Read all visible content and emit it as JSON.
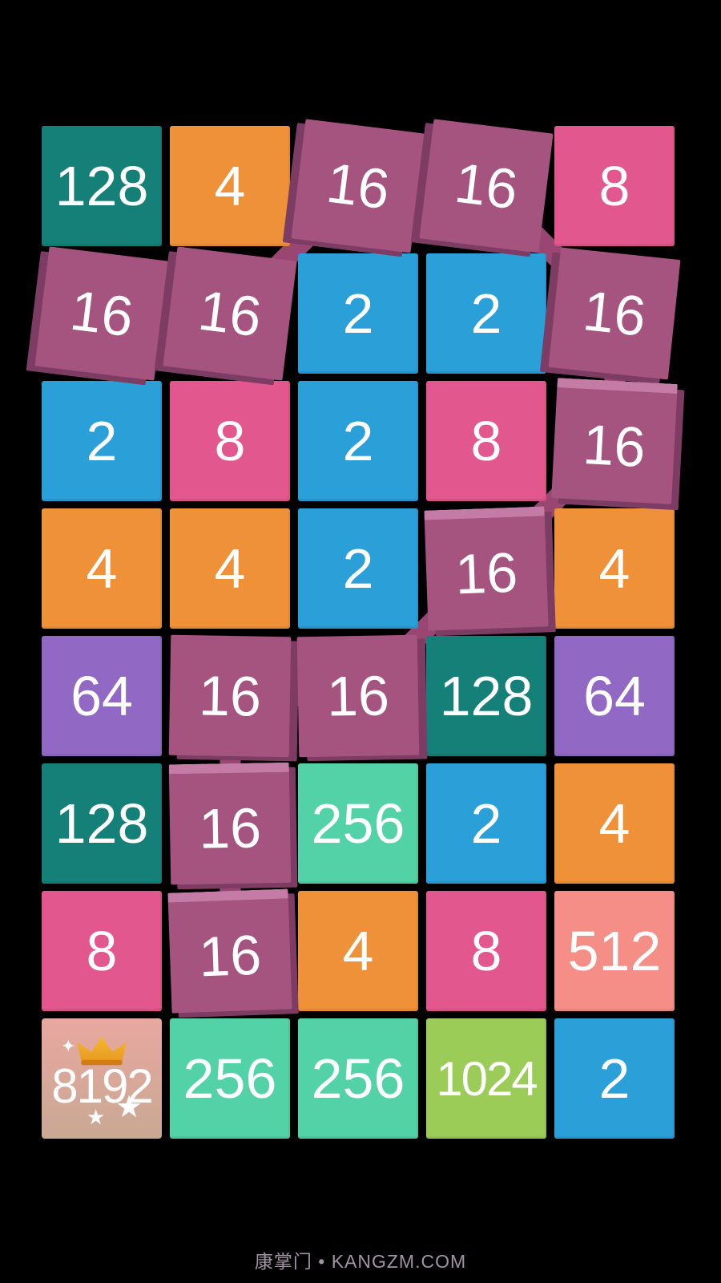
{
  "app": {
    "watermark": "康掌门 • KANGZM.COM"
  },
  "palette": {
    "2": "#2a9fd8",
    "4": "#ef9138",
    "8": "#e2578d",
    "16": "#a5537f",
    "64": "#9169c4",
    "128": "#148077",
    "256": "#52d2a6",
    "512": "#f48e86",
    "1024": "#9acc57",
    "chain_dark": "#7d3c63",
    "chain_bevel": "#c47ba5",
    "chain_link": "#9a4673",
    "special_top": "#e8a89f",
    "special_bottom": "#c9a894",
    "crown_gold": "#e89b20",
    "crown_gold_light": "#f7b733",
    "text": "#ffffff"
  },
  "board": {
    "rows": 8,
    "cols": 5,
    "tiles": [
      {
        "r": 1,
        "c": 1,
        "value": "128",
        "kind": "normal"
      },
      {
        "r": 1,
        "c": 2,
        "value": "4",
        "kind": "normal"
      },
      {
        "r": 1,
        "c": 3,
        "value": "16",
        "kind": "chain",
        "tilt": 7,
        "shadow": [
          -10,
          6
        ],
        "bevel": false
      },
      {
        "r": 1,
        "c": 4,
        "value": "16",
        "kind": "chain",
        "tilt": 7,
        "shadow": [
          -10,
          6
        ],
        "bevel": false
      },
      {
        "r": 1,
        "c": 5,
        "value": "8",
        "kind": "normal"
      },
      {
        "r": 2,
        "c": 1,
        "value": "16",
        "kind": "chain",
        "tilt": 7,
        "shadow": [
          -10,
          7
        ],
        "bevel": false
      },
      {
        "r": 2,
        "c": 2,
        "value": "16",
        "kind": "chain",
        "tilt": 7,
        "shadow": [
          -10,
          7
        ],
        "bevel": false
      },
      {
        "r": 2,
        "c": 3,
        "value": "2",
        "kind": "normal"
      },
      {
        "r": 2,
        "c": 4,
        "value": "2",
        "kind": "normal"
      },
      {
        "r": 2,
        "c": 5,
        "value": "16",
        "kind": "chain",
        "tilt": 6,
        "shadow": [
          -10,
          7
        ],
        "bevel": false
      },
      {
        "r": 3,
        "c": 1,
        "value": "2",
        "kind": "normal"
      },
      {
        "r": 3,
        "c": 2,
        "value": "8",
        "kind": "normal"
      },
      {
        "r": 3,
        "c": 3,
        "value": "2",
        "kind": "normal"
      },
      {
        "r": 3,
        "c": 4,
        "value": "8",
        "kind": "normal"
      },
      {
        "r": 3,
        "c": 5,
        "value": "16",
        "kind": "chain",
        "tilt": 3,
        "shadow": [
          9,
          7
        ],
        "bevel": true
      },
      {
        "r": 4,
        "c": 1,
        "value": "4",
        "kind": "normal"
      },
      {
        "r": 4,
        "c": 2,
        "value": "4",
        "kind": "normal"
      },
      {
        "r": 4,
        "c": 3,
        "value": "2",
        "kind": "normal"
      },
      {
        "r": 4,
        "c": 4,
        "value": "16",
        "kind": "chain",
        "tilt": -2,
        "shadow": [
          9,
          7
        ],
        "bevel": true
      },
      {
        "r": 4,
        "c": 5,
        "value": "4",
        "kind": "normal"
      },
      {
        "r": 5,
        "c": 1,
        "value": "64",
        "kind": "normal"
      },
      {
        "r": 5,
        "c": 2,
        "value": "16",
        "kind": "chain",
        "tilt": 1,
        "shadow": [
          10,
          5
        ],
        "bevel": false
      },
      {
        "r": 5,
        "c": 3,
        "value": "16",
        "kind": "chain",
        "tilt": -1,
        "shadow": [
          10,
          5
        ],
        "bevel": false
      },
      {
        "r": 5,
        "c": 4,
        "value": "128",
        "kind": "normal"
      },
      {
        "r": 5,
        "c": 5,
        "value": "64",
        "kind": "normal"
      },
      {
        "r": 6,
        "c": 1,
        "value": "128",
        "kind": "normal"
      },
      {
        "r": 6,
        "c": 2,
        "value": "16",
        "kind": "chain",
        "tilt": -1,
        "shadow": [
          8,
          6
        ],
        "bevel": true
      },
      {
        "r": 6,
        "c": 3,
        "value": "256",
        "kind": "normal"
      },
      {
        "r": 6,
        "c": 4,
        "value": "2",
        "kind": "normal"
      },
      {
        "r": 6,
        "c": 5,
        "value": "4",
        "kind": "normal"
      },
      {
        "r": 7,
        "c": 1,
        "value": "8",
        "kind": "normal"
      },
      {
        "r": 7,
        "c": 2,
        "value": "16",
        "kind": "chain",
        "tilt": -2,
        "shadow": [
          8,
          6
        ],
        "bevel": true
      },
      {
        "r": 7,
        "c": 3,
        "value": "4",
        "kind": "normal"
      },
      {
        "r": 7,
        "c": 4,
        "value": "8",
        "kind": "normal"
      },
      {
        "r": 7,
        "c": 5,
        "value": "512",
        "kind": "normal"
      },
      {
        "r": 8,
        "c": 1,
        "value": "8192",
        "kind": "special"
      },
      {
        "r": 8,
        "c": 2,
        "value": "256",
        "kind": "normal"
      },
      {
        "r": 8,
        "c": 3,
        "value": "256",
        "kind": "normal"
      },
      {
        "r": 8,
        "c": 4,
        "value": "1024",
        "kind": "normal"
      },
      {
        "r": 8,
        "c": 5,
        "value": "2",
        "kind": "normal"
      }
    ],
    "chain_path": [
      [
        2,
        1
      ],
      [
        2,
        2
      ],
      [
        1,
        3
      ],
      [
        1,
        4
      ],
      [
        2,
        5
      ],
      [
        3,
        5
      ],
      [
        4,
        4
      ],
      [
        5,
        3
      ],
      [
        5,
        2
      ],
      [
        6,
        2
      ],
      [
        7,
        2
      ]
    ],
    "special_tile": {
      "value": "8192",
      "icons": [
        "crown",
        "sparkle",
        "star-small",
        "star-big"
      ]
    }
  }
}
